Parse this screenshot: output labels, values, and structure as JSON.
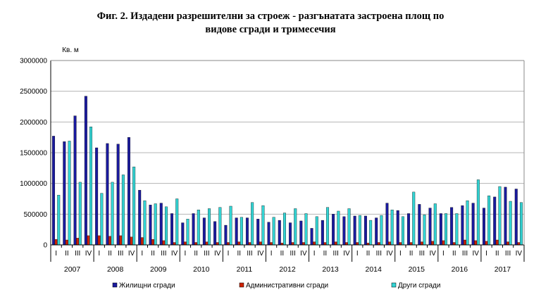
{
  "chart_data": {
    "type": "bar",
    "title": "Фиг. 2. Издадени разрешителни за строеж - разгънатата застроена площ по",
    "title_line2": "видове сгради и тримесечия",
    "ylabel": "Кв. м",
    "xlabel": "",
    "ylim": [
      0,
      3000000
    ],
    "yticks": [
      "0",
      "500000",
      "1000000",
      "1500000",
      "2000000",
      "2500000",
      "3000000"
    ],
    "grid": true,
    "legend_position": "bottom",
    "quarter_labels": [
      "I",
      "II",
      "III",
      "IV"
    ],
    "years": [
      "2007",
      "2008",
      "2009",
      "2010",
      "2011",
      "2012",
      "2013",
      "2014",
      "2015",
      "2016",
      "2017"
    ],
    "series": [
      {
        "name": "Жилищни сгради",
        "color": "#1a1a9e",
        "values": [
          1770000,
          1680000,
          2100000,
          2420000,
          1580000,
          1650000,
          1640000,
          1750000,
          890000,
          650000,
          680000,
          510000,
          360000,
          510000,
          440000,
          380000,
          320000,
          440000,
          440000,
          420000,
          370000,
          400000,
          360000,
          390000,
          270000,
          400000,
          500000,
          460000,
          470000,
          470000,
          440000,
          680000,
          560000,
          510000,
          660000,
          600000,
          510000,
          610000,
          640000,
          680000,
          600000,
          780000,
          940000,
          910000
        ]
      },
      {
        "name": "Административни сгради",
        "color": "#cc2200",
        "values": [
          90000,
          80000,
          110000,
          150000,
          150000,
          140000,
          150000,
          130000,
          120000,
          90000,
          70000,
          40000,
          50000,
          40000,
          50000,
          40000,
          40000,
          50000,
          40000,
          50000,
          40000,
          30000,
          40000,
          40000,
          50000,
          40000,
          50000,
          40000,
          40000,
          30000,
          40000,
          50000,
          40000,
          40000,
          50000,
          60000,
          70000,
          40000,
          80000,
          70000,
          60000,
          80000,
          50000,
          40000
        ]
      },
      {
        "name": "Други сгради",
        "color": "#33d4d4",
        "values": [
          810000,
          1690000,
          1020000,
          1920000,
          840000,
          1020000,
          1140000,
          1270000,
          720000,
          670000,
          620000,
          750000,
          420000,
          570000,
          590000,
          610000,
          630000,
          450000,
          690000,
          640000,
          450000,
          520000,
          590000,
          510000,
          460000,
          610000,
          550000,
          590000,
          480000,
          400000,
          480000,
          570000,
          460000,
          860000,
          490000,
          670000,
          510000,
          510000,
          720000,
          1060000,
          800000,
          950000,
          710000,
          690000
        ]
      }
    ]
  }
}
